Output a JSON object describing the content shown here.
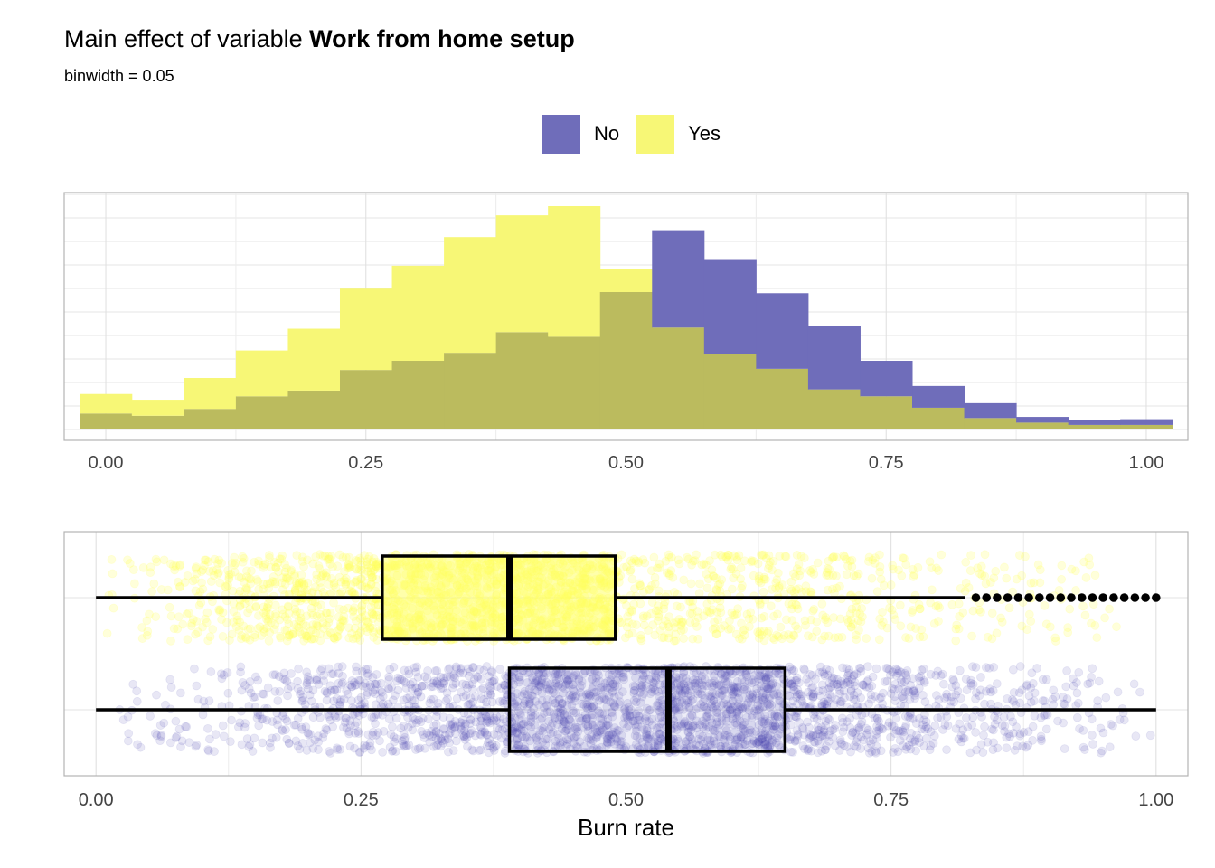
{
  "title": {
    "prefix": "Main effect of variable ",
    "variable": "Work from home setup"
  },
  "subtitle": "binwidth  = 0.05",
  "colors": {
    "No": "#6F6DBA",
    "Yes": "#F7F776",
    "overlap": "#BBBB5E"
  },
  "legend": {
    "position": "top",
    "items": [
      {
        "label": "No",
        "color": "#6F6DBA"
      },
      {
        "label": "Yes",
        "color": "#F7F776"
      }
    ]
  },
  "chart_data": [
    {
      "type": "histogram",
      "binwidth": 0.05,
      "x": [
        0.0,
        0.05,
        0.1,
        0.15,
        0.2,
        0.25,
        0.3,
        0.35,
        0.4,
        0.45,
        0.5,
        0.55,
        0.6,
        0.65,
        0.7,
        0.75,
        0.8,
        0.85,
        0.9,
        0.95,
        1.0
      ],
      "series": [
        {
          "name": "No",
          "values": [
            70,
            60,
            90,
            145,
            170,
            260,
            300,
            335,
            425,
            405,
            600,
            870,
            740,
            595,
            450,
            300,
            190,
            115,
            55,
            40,
            45
          ]
        },
        {
          "name": "Yes",
          "values": [
            155,
            130,
            225,
            345,
            440,
            615,
            715,
            840,
            935,
            975,
            700,
            445,
            330,
            265,
            175,
            145,
            95,
            50,
            30,
            20,
            20
          ]
        }
      ],
      "xlim": [
        -0.04,
        1.04
      ],
      "x_ticks": [
        "0.00",
        "0.25",
        "0.50",
        "0.75",
        "1.00"
      ],
      "y_ticks_visible": false,
      "grid": true
    },
    {
      "type": "boxplot",
      "xlabel": "Burn rate",
      "xlim": [
        -0.03,
        1.03
      ],
      "x_ticks": [
        "0.00",
        "0.25",
        "0.50",
        "0.75",
        "1.00"
      ],
      "grid": true,
      "jitter_points": true,
      "series": [
        {
          "name": "Yes",
          "whisker_low": 0.0,
          "q1": 0.27,
          "median": 0.39,
          "q3": 0.49,
          "whisker_high": 0.82,
          "outliers": [
            0.83,
            0.84,
            0.85,
            0.86,
            0.87,
            0.88,
            0.89,
            0.9,
            0.91,
            0.92,
            0.93,
            0.94,
            0.95,
            0.96,
            0.97,
            0.98,
            0.99,
            1.0
          ]
        },
        {
          "name": "No",
          "whisker_low": 0.0,
          "q1": 0.39,
          "median": 0.54,
          "q3": 0.65,
          "whisker_high": 1.0,
          "outliers": []
        }
      ]
    }
  ]
}
